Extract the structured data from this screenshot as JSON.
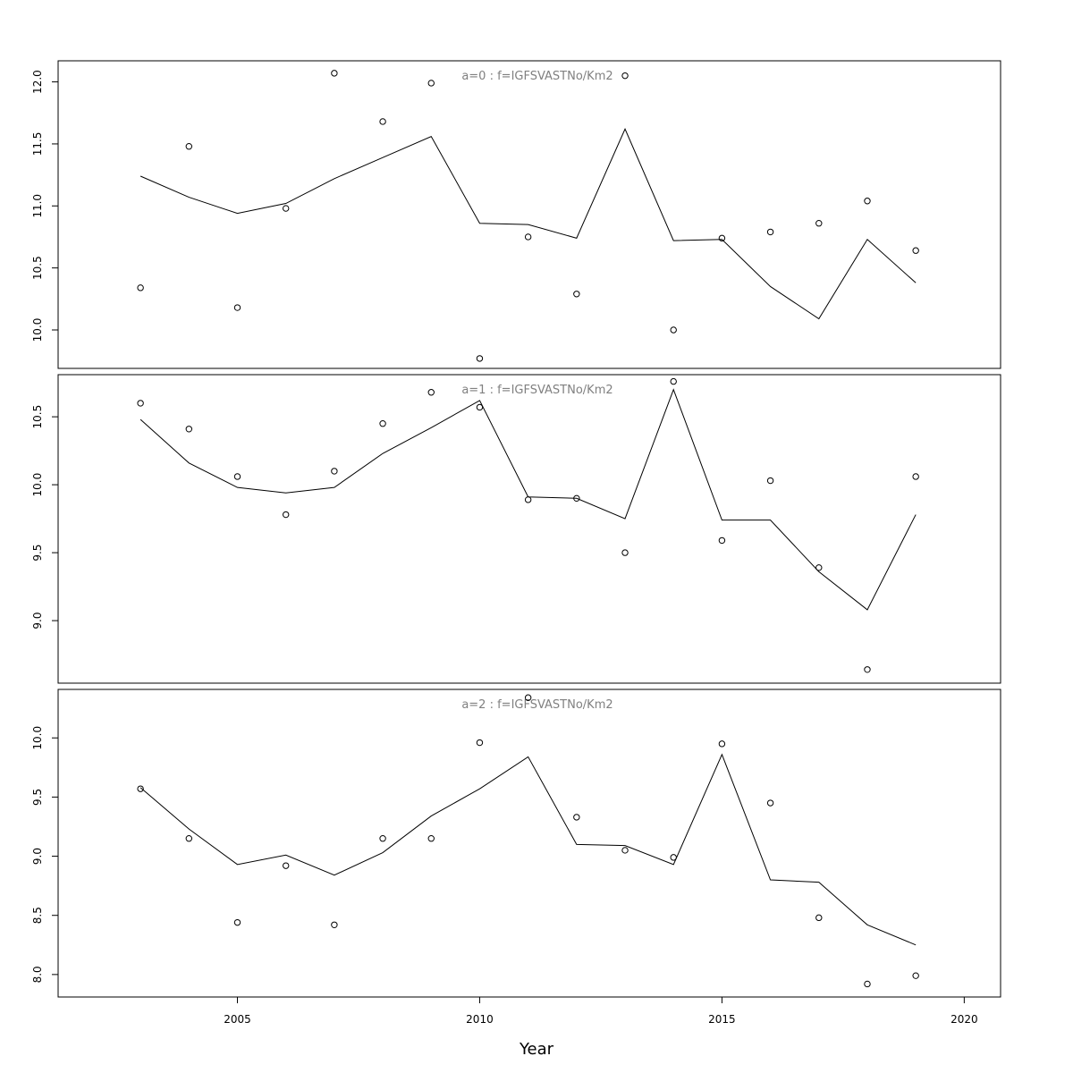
{
  "chart_data": {
    "type": "line",
    "xlabel": "Year",
    "xlim": [
      2001.3,
      2020.75
    ],
    "xticks": [
      2005,
      2010,
      2015,
      2020
    ],
    "panels": [
      {
        "title": "a=0  :  f=IGFSVASTNo/Km2",
        "ylim": [
          9.69,
          12.17
        ],
        "yticks": [
          10.0,
          10.5,
          11.0,
          11.5,
          12.0
        ],
        "x": [
          2003,
          2004,
          2005,
          2006,
          2007,
          2008,
          2009,
          2010,
          2011,
          2012,
          2013,
          2014,
          2015,
          2016,
          2017,
          2018,
          2019
        ],
        "observed": [
          10.34,
          11.48,
          10.18,
          10.98,
          12.07,
          11.68,
          11.99,
          9.77,
          10.75,
          10.29,
          12.05,
          10.0,
          10.74,
          10.79,
          10.86,
          11.04,
          10.64
        ],
        "fitted": [
          11.24,
          11.07,
          10.94,
          11.02,
          11.22,
          11.39,
          11.56,
          10.86,
          10.85,
          10.74,
          11.62,
          10.72,
          10.73,
          10.35,
          10.09,
          10.73,
          10.38
        ]
      },
      {
        "title": "a=1  :  f=IGFSVASTNo/Km2",
        "ylim": [
          8.54,
          10.81
        ],
        "yticks": [
          9.0,
          9.5,
          10.0,
          10.5
        ],
        "x": [
          2003,
          2004,
          2005,
          2006,
          2007,
          2008,
          2009,
          2010,
          2011,
          2012,
          2013,
          2014,
          2015,
          2016,
          2017,
          2018,
          2019
        ],
        "observed": [
          10.6,
          10.41,
          10.06,
          9.78,
          10.1,
          10.45,
          10.68,
          10.57,
          9.89,
          9.9,
          9.5,
          10.76,
          9.59,
          10.03,
          9.39,
          8.64,
          10.06
        ],
        "fitted": [
          10.48,
          10.16,
          9.98,
          9.94,
          9.98,
          10.23,
          10.42,
          10.62,
          9.91,
          9.9,
          9.75,
          10.7,
          9.74,
          9.74,
          9.36,
          9.08,
          9.78
        ]
      },
      {
        "title": "a=2  :  f=IGFSVASTNo/Km2",
        "ylim": [
          7.81,
          10.41
        ],
        "yticks": [
          8.0,
          8.5,
          9.0,
          9.5,
          10.0
        ],
        "x": [
          2003,
          2004,
          2005,
          2006,
          2007,
          2008,
          2009,
          2010,
          2011,
          2012,
          2013,
          2014,
          2015,
          2016,
          2017,
          2018,
          2019
        ],
        "observed": [
          9.57,
          9.15,
          8.44,
          8.92,
          8.42,
          9.15,
          9.15,
          9.96,
          10.34,
          9.33,
          9.05,
          8.99,
          9.95,
          9.45,
          8.48,
          7.92,
          7.99
        ],
        "fitted": [
          9.58,
          9.23,
          8.93,
          9.01,
          8.84,
          9.03,
          9.34,
          9.57,
          9.84,
          9.1,
          9.09,
          8.93,
          9.86,
          8.8,
          8.78,
          8.42,
          8.25
        ]
      }
    ]
  }
}
